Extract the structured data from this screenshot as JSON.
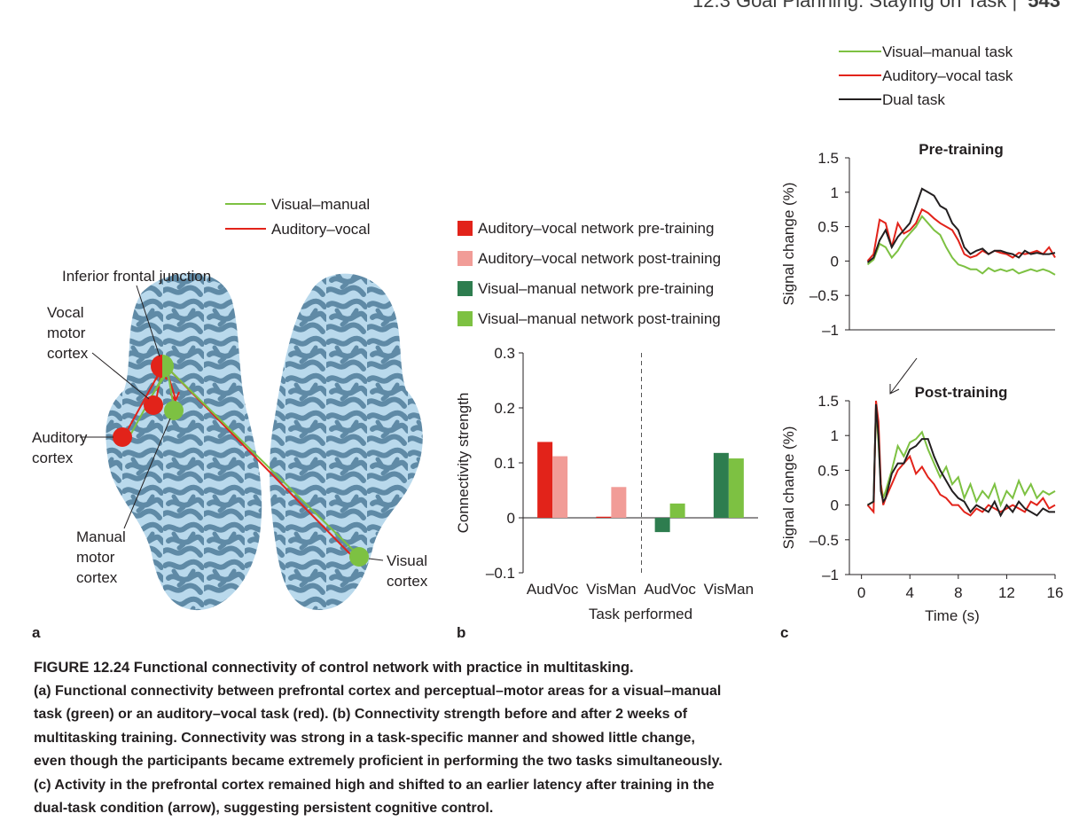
{
  "header": {
    "section": "12.3 Goal Planning: Staying on Task",
    "separator": "|",
    "page": "543"
  },
  "panel_a": {
    "letter": "a",
    "legend": [
      {
        "label": "Visual–manual",
        "color": "#7dc142"
      },
      {
        "label": "Auditory–vocal",
        "color": "#e2231a"
      }
    ],
    "labels": {
      "ifj": "Inferior frontal junction",
      "vocal": [
        "Vocal",
        "motor",
        "cortex"
      ],
      "auditory": [
        "Auditory",
        "cortex"
      ],
      "manual": [
        "Manual",
        "motor",
        "cortex"
      ],
      "visual": [
        "Visual",
        "cortex"
      ]
    },
    "colors": {
      "brain_light": "#b9d9ec",
      "brain_dark": "#5f8aa6"
    }
  },
  "panel_b": {
    "letter": "b",
    "legend": [
      {
        "label": "Auditory–vocal network pre-training",
        "color": "#e2231a"
      },
      {
        "label": "Auditory–vocal network post-training",
        "color": "#f19c97"
      },
      {
        "label": "Visual–manual network pre-training",
        "color": "#2e7d4f"
      },
      {
        "label": "Visual–manual network post-training",
        "color": "#7dc142"
      }
    ],
    "chart_data": {
      "type": "bar",
      "ylabel": "Connectivity strength",
      "xlabel": "Task performed",
      "ylim": [
        -0.1,
        0.3
      ],
      "yticks": [
        "0.3",
        "0.2",
        "0.1",
        "0",
        "–0.1"
      ],
      "ytick_values": [
        0.3,
        0.2,
        0.1,
        0,
        -0.1
      ],
      "categories": [
        "AudVoc",
        "VisMan",
        "AudVoc",
        "VisMan"
      ],
      "series": [
        {
          "name": "Auditory–vocal network pre-training",
          "color": "#e2231a",
          "cat": 0,
          "value": 0.138
        },
        {
          "name": "Auditory–vocal network post-training",
          "color": "#f19c97",
          "cat": 0,
          "value": 0.112
        },
        {
          "name": "Auditory–vocal network pre-training",
          "color": "#e2231a",
          "cat": 1,
          "value": 0.002
        },
        {
          "name": "Auditory–vocal network post-training",
          "color": "#f19c97",
          "cat": 1,
          "value": 0.056
        },
        {
          "name": "Visual–manual network pre-training",
          "color": "#2e7d4f",
          "cat": 2,
          "value": -0.026
        },
        {
          "name": "Visual–manual network post-training",
          "color": "#7dc142",
          "cat": 2,
          "value": 0.026
        },
        {
          "name": "Visual–manual network pre-training",
          "color": "#2e7d4f",
          "cat": 3,
          "value": 0.118
        },
        {
          "name": "Visual–manual network post-training",
          "color": "#7dc142",
          "cat": 3,
          "value": 0.108
        }
      ]
    }
  },
  "panel_c": {
    "letter": "c",
    "legend": [
      {
        "label": "Visual–manual task",
        "color": "#7dc142"
      },
      {
        "label": "Auditory–vocal task",
        "color": "#e2231a"
      },
      {
        "label": "Dual task",
        "color": "#231f20"
      }
    ],
    "chart_data": [
      {
        "type": "line",
        "title": "Pre-training",
        "ylabel": "Signal change (%)",
        "ylim": [
          -1,
          1.5
        ],
        "yticks": [
          "1.5",
          "1",
          "0.5",
          "0",
          "–0.5",
          "–1"
        ],
        "ytick_values": [
          1.5,
          1,
          0.5,
          0,
          -0.5,
          -1
        ],
        "xlim": [
          0,
          16
        ],
        "series": [
          {
            "name": "Visual–manual task",
            "color": "#7dc142",
            "x": [
              0.5,
              1,
              1.5,
              2,
              2.5,
              3,
              3.5,
              4,
              4.5,
              5,
              5.5,
              6,
              6.5,
              7,
              7.5,
              8,
              8.5,
              9,
              9.5,
              10,
              10.5,
              11,
              11.5,
              12,
              12.5,
              13,
              13.5,
              14,
              14.5,
              15,
              15.5,
              16
            ],
            "y": [
              -0.05,
              0.02,
              0.25,
              0.2,
              0.05,
              0.15,
              0.3,
              0.4,
              0.5,
              0.65,
              0.55,
              0.45,
              0.38,
              0.2,
              0.05,
              -0.05,
              -0.08,
              -0.12,
              -0.12,
              -0.18,
              -0.1,
              -0.15,
              -0.12,
              -0.15,
              -0.12,
              -0.18,
              -0.15,
              -0.12,
              -0.15,
              -0.12,
              -0.15,
              -0.2
            ]
          },
          {
            "name": "Auditory–vocal task",
            "color": "#e2231a",
            "x": [
              0.5,
              1,
              1.5,
              2,
              2.5,
              3,
              3.5,
              4,
              4.5,
              5,
              5.5,
              6,
              6.5,
              7,
              7.5,
              8,
              8.5,
              9,
              9.5,
              10,
              10.5,
              11,
              11.5,
              12,
              12.5,
              13,
              13.5,
              14,
              14.5,
              15,
              15.5,
              16
            ],
            "y": [
              0.0,
              0.1,
              0.6,
              0.55,
              0.2,
              0.55,
              0.4,
              0.45,
              0.55,
              0.75,
              0.7,
              0.62,
              0.55,
              0.5,
              0.45,
              0.3,
              0.1,
              0.05,
              0.08,
              0.15,
              0.1,
              0.15,
              0.12,
              0.1,
              0.05,
              0.12,
              0.1,
              0.12,
              0.15,
              0.1,
              0.2,
              0.05
            ]
          },
          {
            "name": "Dual task",
            "color": "#231f20",
            "x": [
              0.5,
              1,
              1.5,
              2,
              2.5,
              3,
              3.5,
              4,
              4.5,
              5,
              5.5,
              6,
              6.5,
              7,
              7.5,
              8,
              8.5,
              9,
              9.5,
              10,
              10.5,
              11,
              11.5,
              12,
              12.5,
              13,
              13.5,
              14,
              14.5,
              15,
              15.5,
              16
            ],
            "y": [
              -0.02,
              0.05,
              0.3,
              0.45,
              0.2,
              0.35,
              0.45,
              0.55,
              0.8,
              1.05,
              1.0,
              0.95,
              0.8,
              0.75,
              0.55,
              0.45,
              0.2,
              0.1,
              0.15,
              0.18,
              0.1,
              0.15,
              0.15,
              0.12,
              0.1,
              0.05,
              0.15,
              0.1,
              0.12,
              0.1,
              0.1,
              0.12
            ]
          }
        ]
      },
      {
        "type": "line",
        "title": "Post-training",
        "ylabel": "Signal change (%)",
        "xlabel": "Time (s)",
        "ylim": [
          -1,
          1.5
        ],
        "yticks": [
          "1.5",
          "1",
          "0.5",
          "0",
          "–0.5",
          "–1"
        ],
        "ytick_values": [
          1.5,
          1,
          0.5,
          0,
          -0.5,
          -1
        ],
        "xlim": [
          -1,
          16
        ],
        "xticks": [
          "0",
          "4",
          "8",
          "12",
          "16"
        ],
        "xtick_values": [
          0,
          4,
          8,
          12,
          16
        ],
        "series": [
          {
            "name": "Visual–manual task",
            "color": "#7dc142",
            "x": [
              0.5,
              1,
              1.2,
              1.4,
              1.6,
              1.8,
              2,
              2.5,
              3,
              3.5,
              4,
              4.5,
              5,
              5.5,
              6,
              6.5,
              7,
              7.5,
              8,
              8.5,
              9,
              9.5,
              10,
              10.5,
              11,
              11.5,
              12,
              12.5,
              13,
              13.5,
              14,
              14.5,
              15,
              15.5,
              16
            ],
            "y": [
              0.0,
              0.05,
              1.4,
              0.9,
              0.3,
              0.1,
              0.2,
              0.5,
              0.85,
              0.7,
              0.9,
              0.95,
              1.05,
              0.8,
              0.6,
              0.4,
              0.55,
              0.3,
              0.4,
              0.1,
              0.3,
              0.05,
              0.2,
              0.1,
              0.3,
              0.0,
              0.2,
              0.1,
              0.35,
              0.15,
              0.3,
              0.1,
              0.2,
              0.15,
              0.2
            ]
          },
          {
            "name": "Auditory–vocal task",
            "color": "#e2231a",
            "x": [
              0.5,
              1,
              1.2,
              1.4,
              1.6,
              1.8,
              2,
              2.5,
              3,
              3.5,
              4,
              4.5,
              5,
              5.5,
              6,
              6.5,
              7,
              7.5,
              8,
              8.5,
              9,
              9.5,
              10,
              10.5,
              11,
              11.5,
              12,
              12.5,
              13,
              13.5,
              14,
              14.5,
              15,
              15.5,
              16
            ],
            "y": [
              0.0,
              -0.1,
              1.5,
              1.2,
              0.3,
              0.0,
              0.1,
              0.3,
              0.5,
              0.6,
              0.7,
              0.45,
              0.55,
              0.4,
              0.3,
              0.15,
              0.1,
              0.0,
              0.0,
              -0.1,
              -0.15,
              -0.05,
              -0.1,
              0.0,
              -0.05,
              -0.1,
              -0.05,
              0.0,
              -0.05,
              -0.1,
              0.05,
              0.0,
              0.1,
              -0.05,
              0.0
            ]
          },
          {
            "name": "Dual task",
            "color": "#231f20",
            "x": [
              0.5,
              1,
              1.2,
              1.4,
              1.6,
              1.8,
              2,
              2.5,
              3,
              3.5,
              4,
              4.5,
              5,
              5.5,
              6,
              6.5,
              7,
              7.5,
              8,
              8.5,
              9,
              9.5,
              10,
              10.5,
              11,
              11.5,
              12,
              12.5,
              13,
              13.5,
              14,
              14.5,
              15,
              15.5,
              16
            ],
            "y": [
              0.0,
              0.05,
              1.45,
              1.0,
              0.2,
              0.05,
              0.1,
              0.45,
              0.6,
              0.6,
              0.8,
              0.85,
              0.95,
              0.95,
              0.7,
              0.5,
              0.35,
              0.2,
              0.1,
              0.05,
              -0.1,
              0.0,
              -0.05,
              -0.1,
              0.05,
              -0.15,
              0.0,
              -0.1,
              0.05,
              -0.05,
              -0.1,
              -0.15,
              -0.05,
              -0.1,
              -0.1
            ]
          }
        ]
      }
    ]
  },
  "caption": {
    "title": "FIGURE 12.24 Functional connectivity of control network with practice in multitasking.",
    "lines": [
      "(a) Functional connectivity between prefrontal cortex and perceptual–motor areas for a visual–manual",
      "task (green) or an auditory–vocal task (red). (b) Connectivity strength before and after 2 weeks of",
      "multitasking training. Connectivity was strong in a task-specific manner and showed little change,",
      "even though the participants became extremely proficient in performing the two tasks simultaneously.",
      "(c) Activity in the prefrontal cortex remained high and shifted to an earlier latency after training in the",
      "dual-task condition (arrow), suggesting persistent cognitive control."
    ]
  }
}
